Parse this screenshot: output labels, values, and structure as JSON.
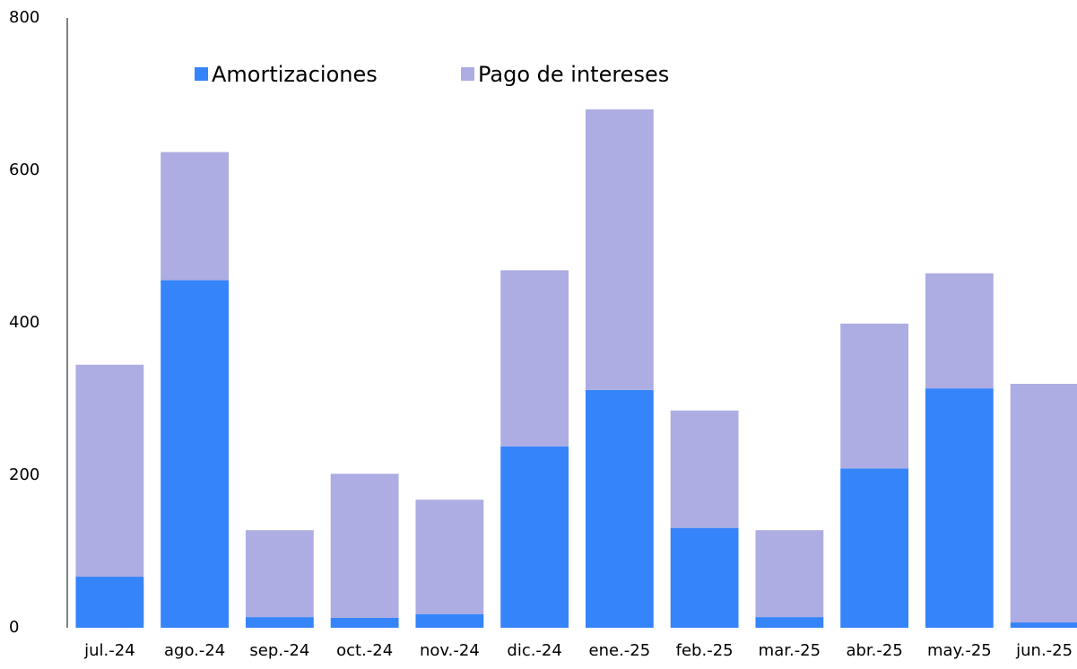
{
  "chart_data": {
    "type": "stacked_bar",
    "categories": [
      "jul.-24",
      "ago.-24",
      "sep.-24",
      "oct.-24",
      "nov.-24",
      "dic.-24",
      "ene.-25",
      "feb.-25",
      "mar.-25",
      "abr.-25",
      "may.-25",
      "jun.-25"
    ],
    "series": [
      {
        "name": "Amortizaciones",
        "color": "#3584fa",
        "values": [
          67,
          456,
          14,
          13,
          18,
          238,
          312,
          131,
          14,
          209,
          314,
          7
        ]
      },
      {
        "name": "Pago de intereses",
        "color": "#adade3",
        "values": [
          278,
          168,
          114,
          189,
          150,
          231,
          368,
          154,
          114,
          190,
          151,
          313
        ]
      }
    ],
    "ylim": [
      0,
      800
    ],
    "yticks": [
      0,
      200,
      400,
      600,
      800
    ],
    "grid": false,
    "legend": "top"
  }
}
